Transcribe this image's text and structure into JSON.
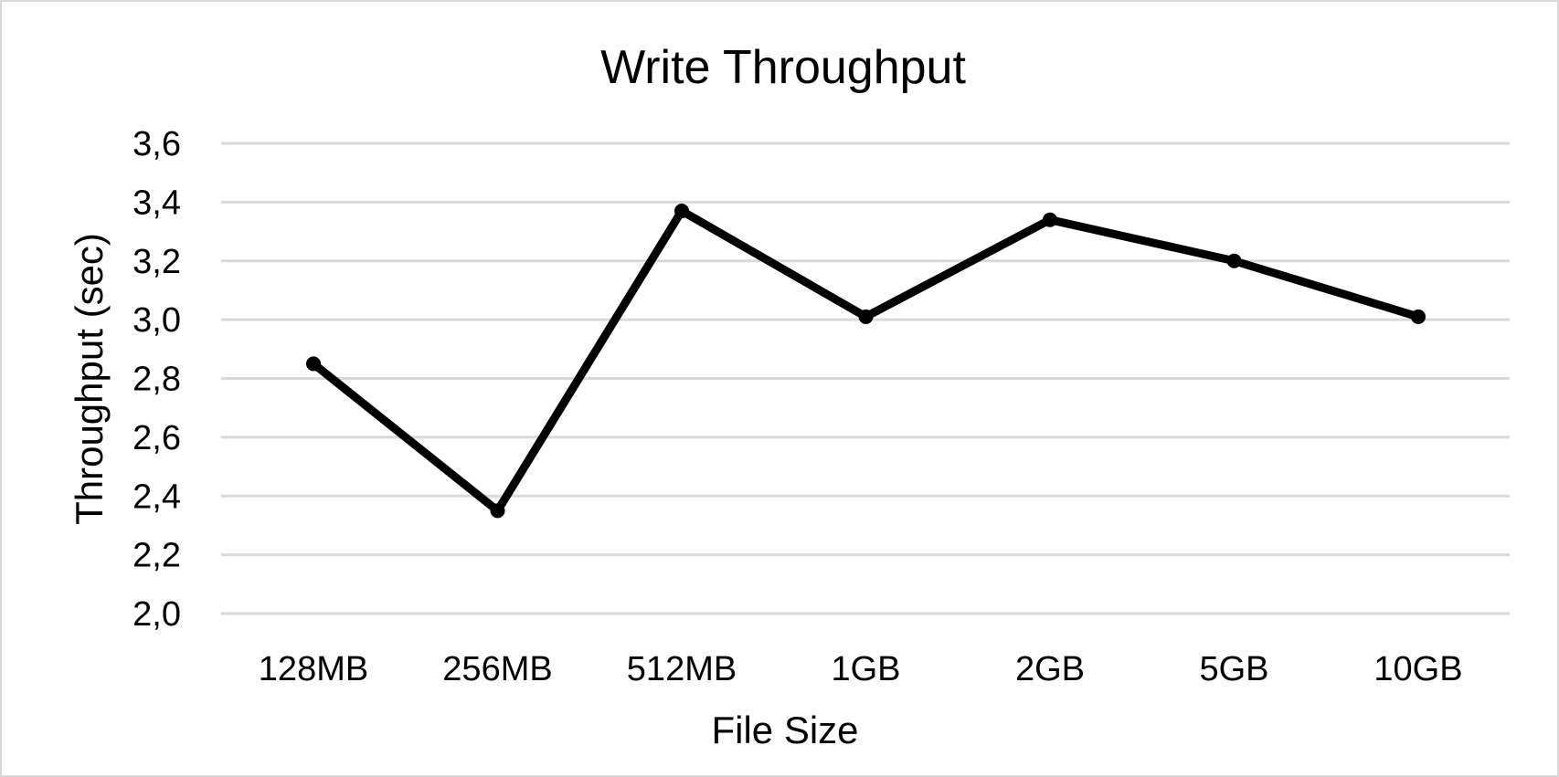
{
  "chart_data": {
    "type": "line",
    "title": "Write Throughput",
    "xlabel": "File Size",
    "ylabel": "Throughput (sec)",
    "categories": [
      "128MB",
      "256MB",
      "512MB",
      "1GB",
      "2GB",
      "5GB",
      "10GB"
    ],
    "values": [
      2.85,
      2.35,
      3.37,
      3.01,
      3.34,
      3.2,
      3.01
    ],
    "ylim": [
      2.0,
      3.6
    ],
    "yticks": [
      "2,0",
      "2,2",
      "2,4",
      "2,6",
      "2,8",
      "3,0",
      "3,2",
      "3,4",
      "3,6"
    ],
    "grid": true,
    "legend": "none",
    "colors": {
      "line": "#000000",
      "grid": "#d9d9d9",
      "background": "#ffffff"
    }
  }
}
